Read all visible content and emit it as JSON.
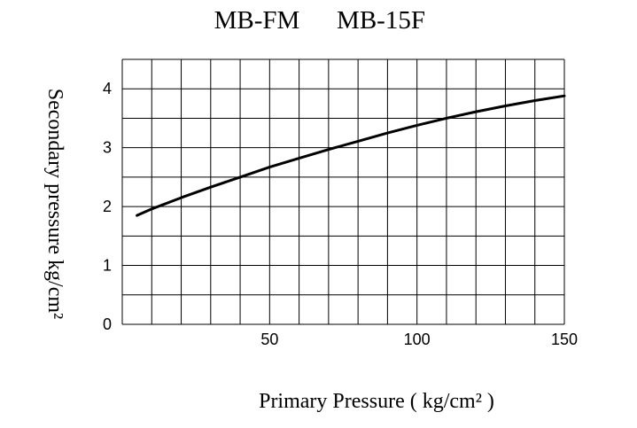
{
  "chart_data": {
    "type": "line",
    "title_parts": [
      "MB-FM",
      "MB-15F"
    ],
    "xlabel": "Primary Pressure ( kg/cm² )",
    "ylabel": "Secondary pressure kg/cm²",
    "xlim": [
      0,
      150
    ],
    "ylim": [
      0,
      4.5
    ],
    "grid": true,
    "x_ticks": [
      50,
      100,
      150
    ],
    "y_ticks": [
      0,
      1,
      2,
      3,
      4
    ],
    "series": [
      {
        "x": [
          5,
          10,
          20,
          30,
          40,
          50,
          60,
          70,
          80,
          90,
          100,
          110,
          120,
          130,
          140,
          150
        ],
        "y": [
          1.85,
          1.96,
          2.15,
          2.33,
          2.5,
          2.67,
          2.82,
          2.97,
          3.11,
          3.25,
          3.38,
          3.5,
          3.61,
          3.71,
          3.8,
          3.88
        ]
      }
    ]
  }
}
